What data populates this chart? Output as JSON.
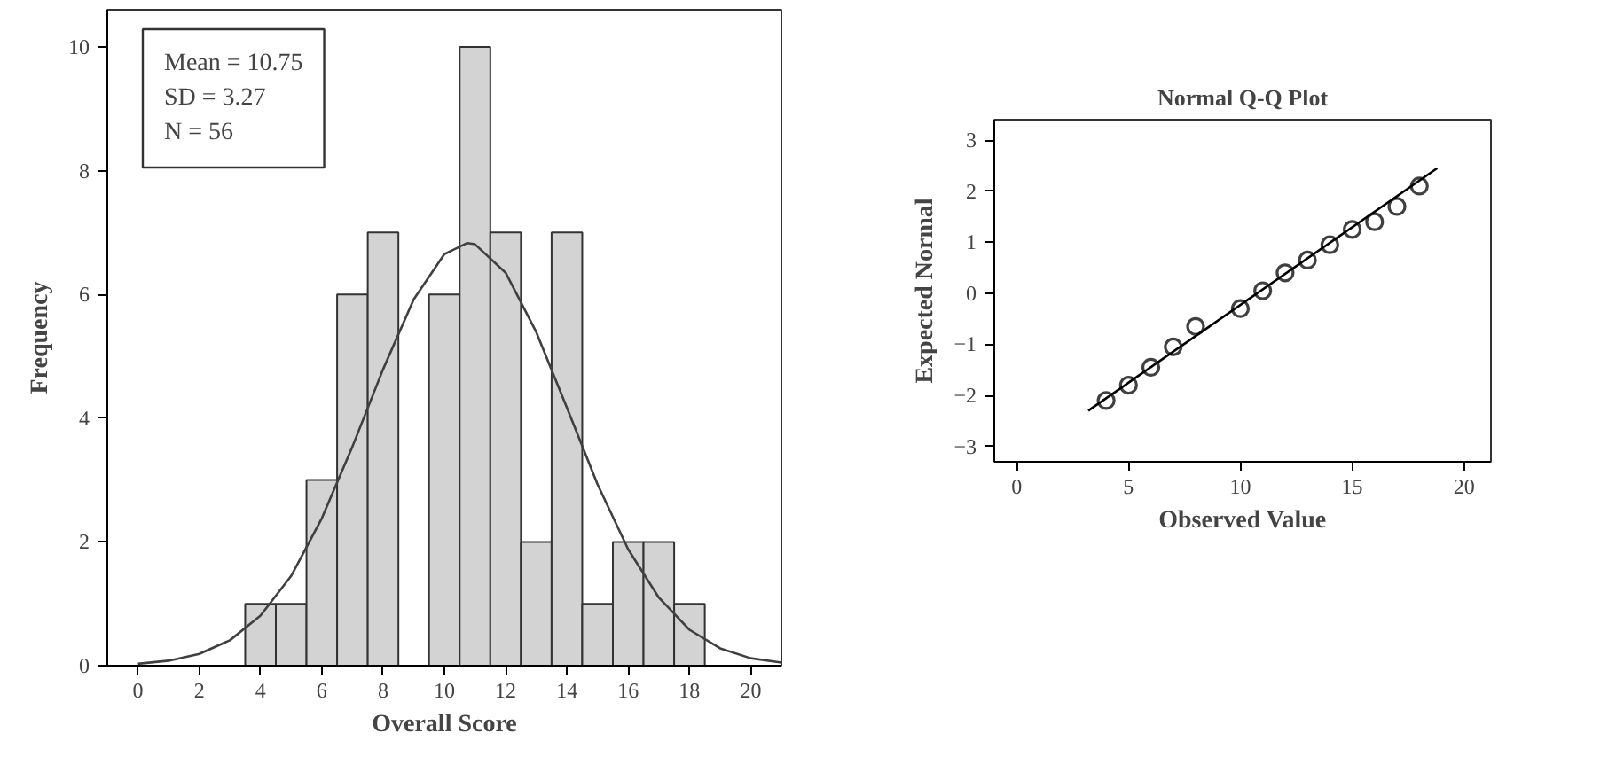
{
  "chart_data": [
    {
      "type": "histogram",
      "xlabel": "Overall Score",
      "ylabel": "Frequency",
      "bins": [
        3.5,
        4.5,
        5.5,
        6.5,
        7.5,
        8.5,
        9.5,
        10.5,
        11.5,
        12.5,
        13.5,
        14.5,
        15.5,
        16.5,
        17.5,
        18.5
      ],
      "values": [
        1,
        1,
        3,
        6,
        7,
        0,
        6,
        10,
        7,
        2,
        7,
        1,
        2,
        2,
        1
      ],
      "color": "#d3d3d3",
      "series": [
        {
          "type": "line",
          "color": "#404040",
          "x": [
            0,
            1,
            2,
            3,
            4,
            5,
            6,
            7,
            8,
            9,
            10,
            10.75,
            11,
            12,
            13,
            14,
            15,
            16,
            17,
            18,
            19,
            20,
            21
          ],
          "values": [
            0.03,
            0.08,
            0.19,
            0.41,
            0.81,
            1.45,
            2.38,
            3.54,
            4.79,
            5.92,
            6.65,
            6.83,
            6.81,
            6.35,
            5.39,
            4.17,
            2.93,
            1.88,
            1.1,
            0.58,
            0.28,
            0.12,
            0.05
          ]
        }
      ],
      "annotations": [
        "Mean = 10.75",
        "SD = 3.27",
        "N = 56"
      ],
      "xlim": [
        -1,
        21
      ],
      "ylim": [
        0,
        10.6
      ],
      "xticks": [
        0,
        2,
        4,
        6,
        8,
        10,
        12,
        14,
        16,
        18,
        20
      ],
      "yticks": [
        0,
        2,
        4,
        6,
        8,
        10
      ],
      "grid": false
    },
    {
      "type": "scatter",
      "title": "Normal Q-Q Plot",
      "xlabel": "Observed Value",
      "ylabel": "Expected Normal",
      "series": [
        {
          "type": "scatter",
          "marker": "circle",
          "color": "#404040",
          "x": [
            4,
            5,
            6,
            7,
            8,
            10,
            11,
            12,
            13,
            14,
            15,
            16,
            17,
            18
          ],
          "values": [
            -2.1,
            -1.8,
            -1.45,
            -1.05,
            -0.65,
            -0.3,
            0.05,
            0.4,
            0.65,
            0.95,
            1.25,
            1.4,
            1.7,
            2.1
          ]
        },
        {
          "type": "line",
          "color": "#000000",
          "x": [
            3.2,
            18.8
          ],
          "values": [
            -2.3,
            2.45
          ]
        }
      ],
      "xlim": [
        -1,
        21.2
      ],
      "ylim": [
        -3.3,
        3.4
      ],
      "xticks": [
        0,
        5,
        10,
        15,
        20
      ],
      "yticks": [
        3,
        2,
        1,
        0,
        -1,
        -2,
        -3
      ],
      "grid": false
    }
  ]
}
